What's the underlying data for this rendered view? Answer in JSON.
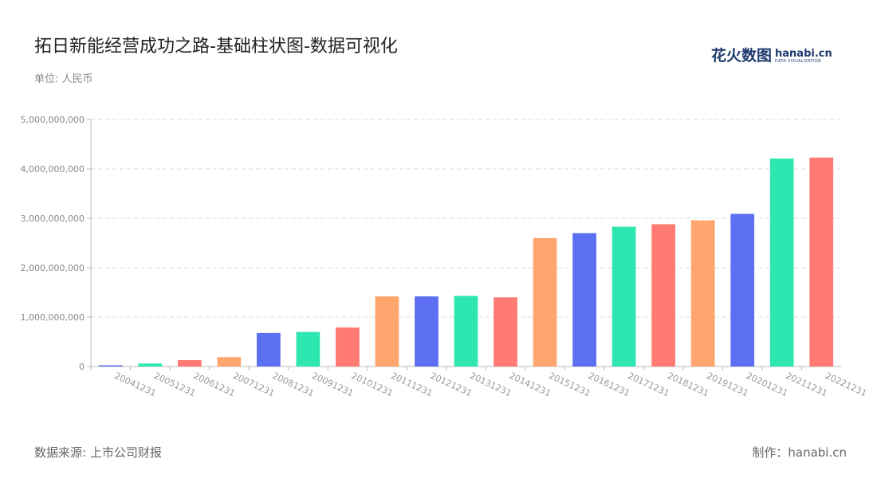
{
  "header": {
    "title": "拓日新能经营成功之路-基础柱状图-数据可视化",
    "unit": "单位: 人民币"
  },
  "logo": {
    "cn": "花火数图",
    "en": "hanabi.cn",
    "tagline": "DATA VISUALIZATION"
  },
  "footer": {
    "source": "数据来源: 上市公司财报",
    "credit": "制作：hanabi.cn"
  },
  "colors": [
    "#5b6ff0",
    "#2ee6b0",
    "#ff7a72",
    "#ffa56e"
  ],
  "chart_data": {
    "type": "bar",
    "title": "拓日新能经营成功之路-基础柱状图-数据可视化",
    "ylabel": "",
    "xlabel": "",
    "ylim": [
      0,
      5000000000
    ],
    "yticks": [
      0,
      1000000000,
      2000000000,
      3000000000,
      4000000000,
      5000000000
    ],
    "ytick_labels": [
      "0",
      "1,000,000,000",
      "2,000,000,000",
      "3,000,000,000",
      "4,000,000,000",
      "5,000,000,000"
    ],
    "grid": true,
    "categories": [
      "20041231",
      "20051231",
      "20061231",
      "20071231",
      "20081231",
      "20091231",
      "20101231",
      "20111231",
      "20121231",
      "20131231",
      "20141231",
      "20151231",
      "20161231",
      "20171231",
      "20181231",
      "20191231",
      "20201231",
      "20211231",
      "20221231"
    ],
    "values": [
      25000000,
      60000000,
      130000000,
      190000000,
      680000000,
      700000000,
      790000000,
      1420000000,
      1420000000,
      1430000000,
      1400000000,
      2600000000,
      2700000000,
      2830000000,
      2880000000,
      2960000000,
      3090000000,
      4210000000,
      4230000000
    ],
    "bar_colors": [
      "#5b6ff0",
      "#2ee6b0",
      "#ff7a72",
      "#ffa56e",
      "#5b6ff0",
      "#2ee6b0",
      "#ff7a72",
      "#ffa56e",
      "#5b6ff0",
      "#2ee6b0",
      "#ff7a72",
      "#ffa56e",
      "#5b6ff0",
      "#2ee6b0",
      "#ff7a72",
      "#ffa56e",
      "#5b6ff0",
      "#2ee6b0",
      "#ff7a72"
    ]
  }
}
